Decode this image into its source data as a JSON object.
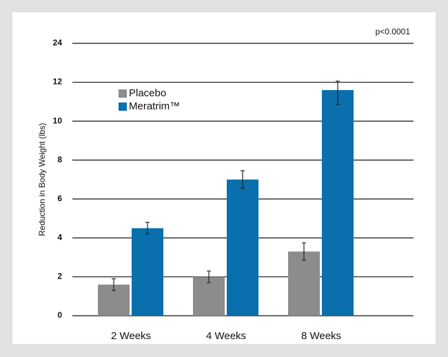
{
  "chart_data": {
    "type": "bar",
    "ylabel": "Reduction in Body Weight (lbs)",
    "annotation": "p<0.0001",
    "categories": [
      "2 Weeks",
      "4 Weeks",
      "8 Weeks"
    ],
    "series": [
      {
        "name": "Placebo",
        "color": "#8c8c8e",
        "values": [
          1.6,
          2.0,
          3.3
        ],
        "errors": [
          0.3,
          0.3,
          0.45
        ]
      },
      {
        "name": "Meratrim™",
        "color": "#0a6fad",
        "values": [
          4.5,
          7.0,
          11.6
        ],
        "errors": [
          0.3,
          0.45,
          0.75
        ]
      }
    ],
    "ylim": [
      0,
      24
    ],
    "ybreak": 12,
    "yticks": [
      0,
      2,
      4,
      6,
      8,
      10,
      12,
      24
    ],
    "grid": true
  }
}
